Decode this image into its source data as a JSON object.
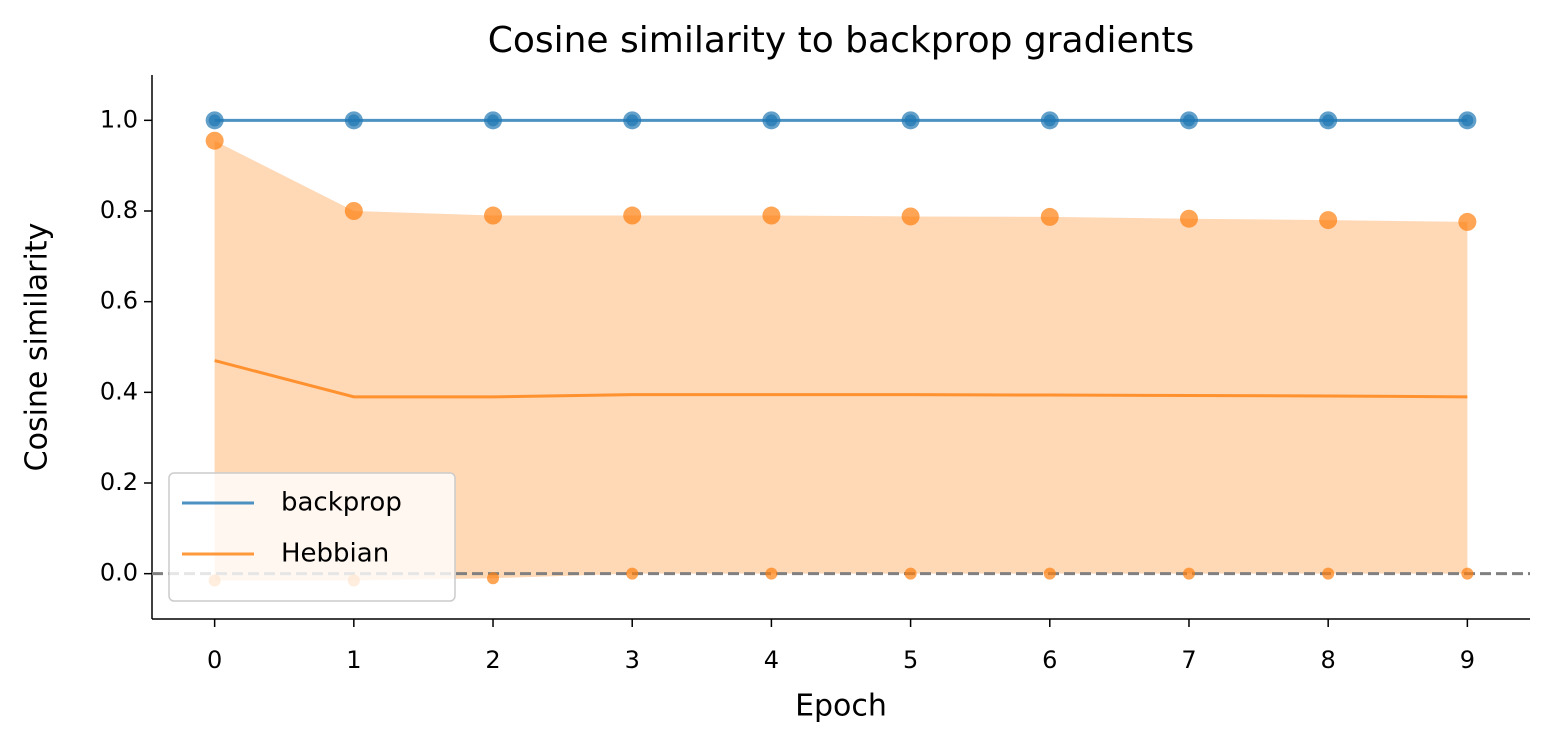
{
  "chart_data": {
    "type": "line",
    "title": "Cosine similarity to backprop gradients",
    "x_label": "Epoch",
    "y_label": "Cosine similarity",
    "x": [
      0,
      1,
      2,
      3,
      4,
      5,
      6,
      7,
      8,
      9
    ],
    "xlim": [
      -0.45,
      9.45
    ],
    "xticks": [
      0,
      1,
      2,
      3,
      4,
      5,
      6,
      7,
      8,
      9
    ],
    "ylim": [
      -0.1,
      1.1
    ],
    "yticks": [
      {
        "value": 0,
        "label": "0.0"
      },
      0.2,
      0.4,
      0.6,
      0.8,
      {
        "value": 1,
        "label": "1.0"
      }
    ],
    "reference_line": {
      "y": 0,
      "color": "#808080",
      "style": "dashed"
    },
    "legend": "lower left",
    "series": [
      {
        "name": "backprop",
        "color": "#1f77b4",
        "values": [
          1,
          1,
          1,
          1,
          1,
          1,
          1,
          1,
          1,
          1
        ],
        "max": [
          1,
          1,
          1,
          1,
          1,
          1,
          1,
          1,
          1,
          1
        ],
        "min": [
          1,
          1,
          1,
          1,
          1,
          1,
          1,
          1,
          1,
          1
        ]
      },
      {
        "name": "Hebbian",
        "color": "#ff7f0e",
        "values": [
          0.47,
          0.39,
          0.39,
          0.395,
          0.395,
          0.395,
          0.394,
          0.393,
          0.392,
          0.39
        ],
        "max": [
          0.955,
          0.8,
          0.79,
          0.79,
          0.79,
          0.788,
          0.787,
          0.783,
          0.78,
          0.776
        ],
        "min": [
          -0.015,
          -0.015,
          -0.01,
          0,
          0,
          0,
          0,
          0,
          0,
          0
        ]
      }
    ]
  }
}
